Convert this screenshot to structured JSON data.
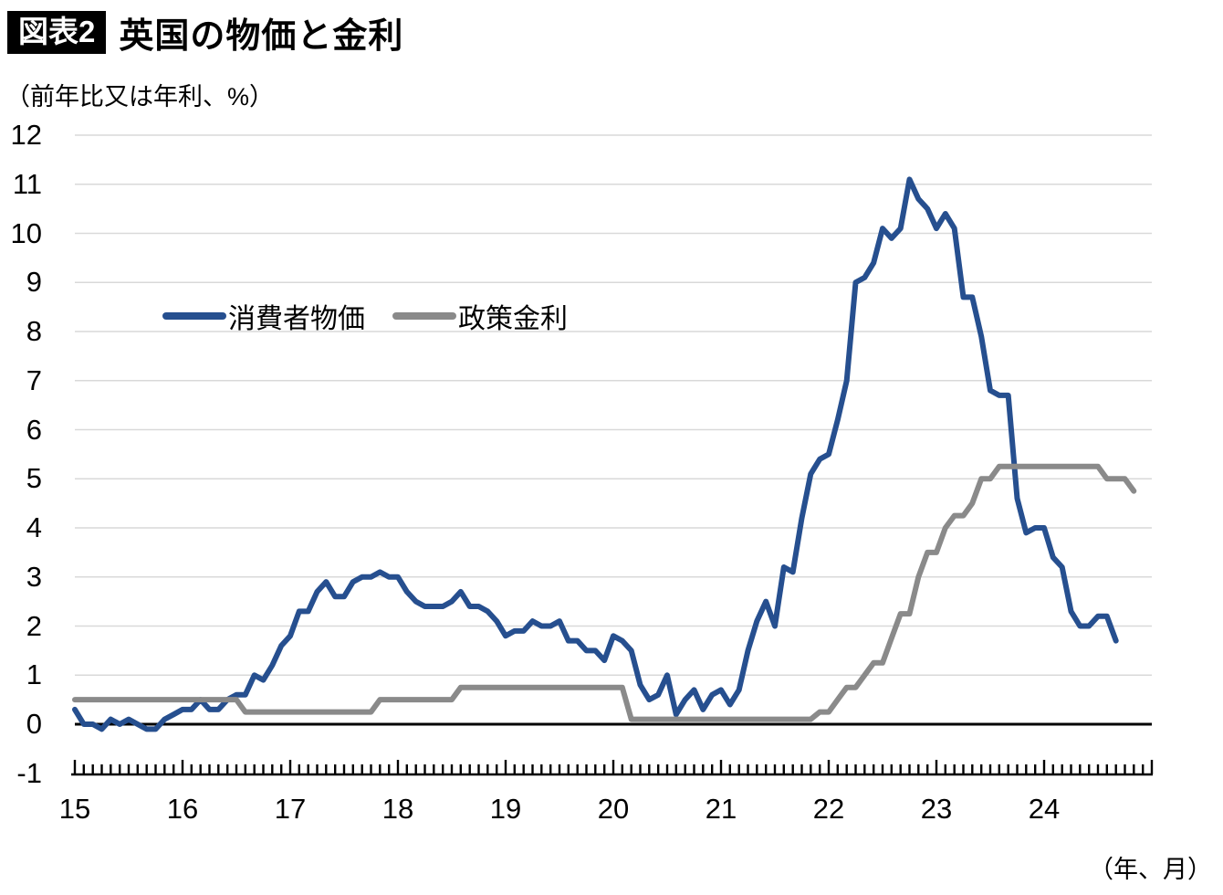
{
  "header": {
    "badge": "図表2",
    "title": "英国の物価と金利",
    "unit_label": "（前年比又は年利、%）"
  },
  "chart_data": {
    "type": "line",
    "title": "英国の物価と金利",
    "subtitle": "（前年比又は年利、%）",
    "xlabel": "（年、月）",
    "ylabel": "（前年比又は年利、%）",
    "x_start": "2015-01",
    "x_frequency": "monthly",
    "categories": [
      "15",
      "16",
      "17",
      "18",
      "19",
      "20",
      "21",
      "22",
      "23",
      "24"
    ],
    "ylim": [
      -1,
      12
    ],
    "yticks": [
      -1,
      0,
      1,
      2,
      3,
      4,
      5,
      6,
      7,
      8,
      9,
      10,
      11,
      12
    ],
    "grid": "horizontal",
    "grid_color": "#D9D9D9",
    "zero_line_color": "#000000",
    "legend_position": "inside-top-left",
    "series": [
      {
        "name": "消費者物価",
        "color": "#264F8F",
        "values": [
          0.3,
          0.0,
          0.0,
          -0.1,
          0.1,
          0.0,
          0.1,
          0.0,
          -0.1,
          -0.1,
          0.1,
          0.2,
          0.3,
          0.3,
          0.5,
          0.3,
          0.3,
          0.5,
          0.6,
          0.6,
          1.0,
          0.9,
          1.2,
          1.6,
          1.8,
          2.3,
          2.3,
          2.7,
          2.9,
          2.6,
          2.6,
          2.9,
          3.0,
          3.0,
          3.1,
          3.0,
          3.0,
          2.7,
          2.5,
          2.4,
          2.4,
          2.4,
          2.5,
          2.7,
          2.4,
          2.4,
          2.3,
          2.1,
          1.8,
          1.9,
          1.9,
          2.1,
          2.0,
          2.0,
          2.1,
          1.7,
          1.7,
          1.5,
          1.5,
          1.3,
          1.8,
          1.7,
          1.5,
          0.8,
          0.5,
          0.6,
          1.0,
          0.2,
          0.5,
          0.7,
          0.3,
          0.6,
          0.7,
          0.4,
          0.7,
          1.5,
          2.1,
          2.5,
          2.0,
          3.2,
          3.1,
          4.2,
          5.1,
          5.4,
          5.5,
          6.2,
          7.0,
          9.0,
          9.1,
          9.4,
          10.1,
          9.9,
          10.1,
          11.1,
          10.7,
          10.5,
          10.1,
          10.4,
          10.1,
          8.7,
          8.7,
          7.9,
          6.8,
          6.7,
          6.7,
          4.6,
          3.9,
          4.0,
          4.0,
          3.4,
          3.2,
          2.3,
          2.0,
          2.0,
          2.2,
          2.2,
          1.7
        ]
      },
      {
        "name": "政策金利",
        "color": "#8A8A8A",
        "values": [
          0.5,
          0.5,
          0.5,
          0.5,
          0.5,
          0.5,
          0.5,
          0.5,
          0.5,
          0.5,
          0.5,
          0.5,
          0.5,
          0.5,
          0.5,
          0.5,
          0.5,
          0.5,
          0.5,
          0.25,
          0.25,
          0.25,
          0.25,
          0.25,
          0.25,
          0.25,
          0.25,
          0.25,
          0.25,
          0.25,
          0.25,
          0.25,
          0.25,
          0.25,
          0.5,
          0.5,
          0.5,
          0.5,
          0.5,
          0.5,
          0.5,
          0.5,
          0.5,
          0.75,
          0.75,
          0.75,
          0.75,
          0.75,
          0.75,
          0.75,
          0.75,
          0.75,
          0.75,
          0.75,
          0.75,
          0.75,
          0.75,
          0.75,
          0.75,
          0.75,
          0.75,
          0.75,
          0.1,
          0.1,
          0.1,
          0.1,
          0.1,
          0.1,
          0.1,
          0.1,
          0.1,
          0.1,
          0.1,
          0.1,
          0.1,
          0.1,
          0.1,
          0.1,
          0.1,
          0.1,
          0.1,
          0.1,
          0.1,
          0.25,
          0.25,
          0.5,
          0.75,
          0.75,
          1.0,
          1.25,
          1.25,
          1.75,
          2.25,
          2.25,
          3.0,
          3.5,
          3.5,
          4.0,
          4.25,
          4.25,
          4.5,
          5.0,
          5.0,
          5.25,
          5.25,
          5.25,
          5.25,
          5.25,
          5.25,
          5.25,
          5.25,
          5.25,
          5.25,
          5.25,
          5.25,
          5.0,
          5.0,
          5.0,
          4.75
        ]
      }
    ]
  }
}
